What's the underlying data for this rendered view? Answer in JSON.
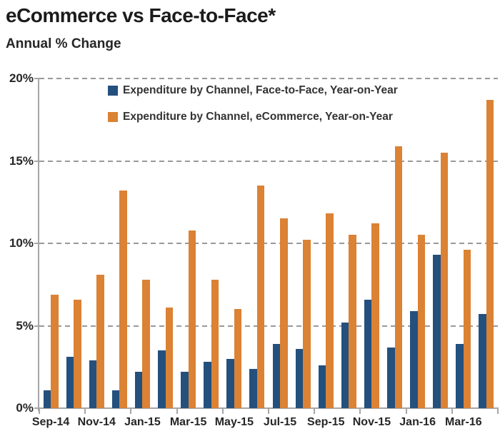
{
  "header": {
    "title": "eCommerce vs Face-to-Face*",
    "subtitle": "Annual % Change"
  },
  "colors": {
    "face_to_face": "#24507D",
    "ecommerce": "#DB8234",
    "grid": "#999999",
    "axis": "#a6a6a6",
    "text": "#262626"
  },
  "chart_data": {
    "type": "bar",
    "title": "eCommerce vs Face-to-Face*",
    "subtitle": "Annual % Change",
    "categories": [
      "Sep-14",
      "Oct-14",
      "Nov-14",
      "Dec-14",
      "Jan-15",
      "Feb-15",
      "Mar-15",
      "Apr-15",
      "May-15",
      "Jun-15",
      "Jul-15",
      "Aug-15",
      "Sep-15",
      "Oct-15",
      "Nov-15",
      "Dec-15",
      "Jan-16",
      "Feb-16",
      "Mar-16",
      "Apr-16"
    ],
    "series": [
      {
        "name": "Expenditure by Channel, Face-to-Face, Year-on-Year",
        "color_key": "face_to_face",
        "values": [
          1.1,
          3.1,
          2.9,
          1.1,
          2.2,
          3.5,
          2.2,
          2.8,
          3.0,
          2.4,
          3.9,
          3.6,
          2.6,
          5.2,
          6.6,
          3.7,
          5.9,
          9.3,
          3.9,
          5.7
        ]
      },
      {
        "name": "Expenditure by Channel, eCommerce, Year-on-Year",
        "color_key": "ecommerce",
        "values": [
          6.9,
          6.6,
          8.1,
          13.2,
          7.8,
          6.1,
          10.8,
          7.8,
          6.0,
          13.5,
          11.5,
          10.2,
          11.8,
          10.5,
          11.2,
          15.9,
          10.5,
          15.5,
          9.6,
          18.7
        ]
      }
    ],
    "xlabel": "",
    "ylabel": "Annual % Change",
    "ylim": [
      0,
      20
    ],
    "ytick_labels": [
      "0%",
      "5%",
      "10%",
      "15%",
      "20%"
    ],
    "xtick_labels": [
      "Sep-14",
      "Nov-14",
      "Jan-15",
      "Mar-15",
      "May-15",
      "Jul-15",
      "Sep-15",
      "Nov-15",
      "Jan-16",
      "Mar-16"
    ],
    "grid": "horizontal-dashed",
    "legend_position": "top-left-inside"
  }
}
